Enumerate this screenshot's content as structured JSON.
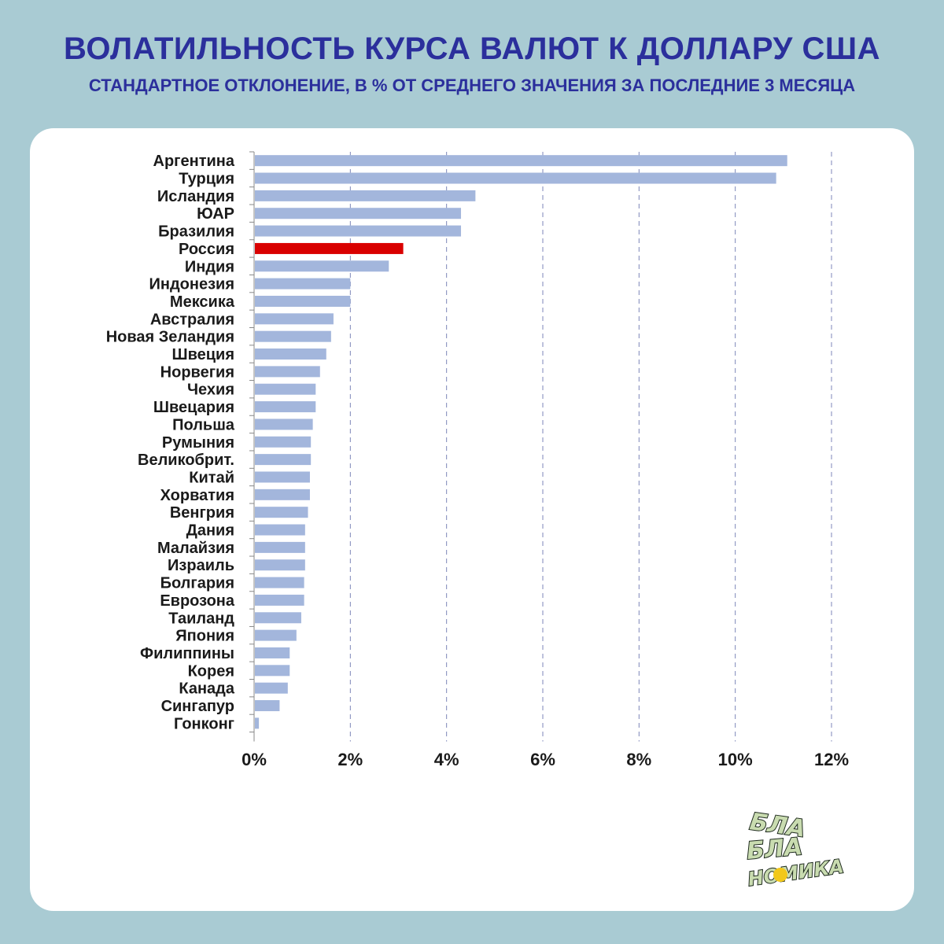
{
  "title": "ВОЛАТИЛЬНОСТЬ КУРСА ВАЛЮТ К ДОЛЛАРУ США",
  "subtitle": "СТАНДАРТНОЕ ОТКЛОНЕНИЕ, В % ОТ СРЕДНЕГО ЗНАЧЕНИЯ ЗА ПОСЛЕДНИЕ 3 МЕСЯЦА",
  "colors": {
    "bar": "#a3b6dc",
    "highlight": "#d90000",
    "title": "#2b2f9c",
    "grid": "#7d86b8",
    "background": "#a9cbd3"
  },
  "chart_data": {
    "type": "bar",
    "orientation": "horizontal",
    "categories": [
      "Аргентина",
      "Турция",
      "Исландия",
      "ЮАР",
      "Бразилия",
      "Россия",
      "Индия",
      "Индонезия",
      "Мексика",
      "Австралия",
      "Новая Зеландия",
      "Швеция",
      "Норвегия",
      "Чехия",
      "Швецария",
      "Польша",
      "Румыния",
      "Великобрит.",
      "Китай",
      "Хорватия",
      "Венгрия",
      "Дания",
      "Малайзия",
      "Израиль",
      "Болгария",
      "Еврозона",
      "Таиланд",
      "Япония",
      "Филиппины",
      "Корея",
      "Канада",
      "Сингапур",
      "Гонконг"
    ],
    "values": [
      11.08,
      10.85,
      4.6,
      4.3,
      4.3,
      3.1,
      2.8,
      2.0,
      2.0,
      1.65,
      1.6,
      1.5,
      1.37,
      1.28,
      1.28,
      1.22,
      1.18,
      1.18,
      1.16,
      1.16,
      1.12,
      1.06,
      1.06,
      1.06,
      1.04,
      1.04,
      0.98,
      0.88,
      0.74,
      0.74,
      0.7,
      0.53,
      0.1
    ],
    "highlight": "Россия",
    "xlim": [
      0,
      12
    ],
    "xticks": [
      0,
      2,
      4,
      6,
      8,
      10,
      12
    ],
    "xtick_labels": [
      "0%",
      "2%",
      "4%",
      "6%",
      "8%",
      "10%",
      "12%"
    ],
    "grid": "vertical dashed",
    "xlabel": "",
    "ylabel": ""
  },
  "logo": {
    "line1": "БЛА",
    "line2": "БЛА",
    "line3": "НОМИКА"
  }
}
